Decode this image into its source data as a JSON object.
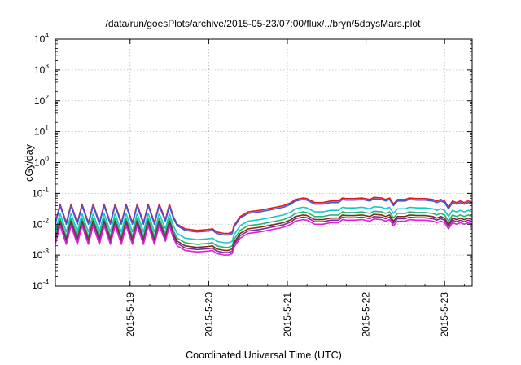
{
  "chart_data": {
    "type": "line",
    "title": "/data/run/goesPlots/archive/2015-05-23/07:00/flux/../bryn/5daysMars.plot",
    "xlabel": "Coordinated Universal Time (UTC)",
    "ylabel": "cGy/day",
    "y_scale": "log",
    "ylim_exponents": [
      -4,
      4
    ],
    "y_ticks": [
      {
        "base": "10",
        "exp": "-4"
      },
      {
        "base": "10",
        "exp": "-3"
      },
      {
        "base": "10",
        "exp": "-2"
      },
      {
        "base": "10",
        "exp": "-1"
      },
      {
        "base": "10",
        "exp": "0"
      },
      {
        "base": "10",
        "exp": "1"
      },
      {
        "base": "10",
        "exp": "2"
      },
      {
        "base": "10",
        "exp": "3"
      },
      {
        "base": "10",
        "exp": "4"
      }
    ],
    "xlim_days": [
      0,
      5.3
    ],
    "x_ticks": [
      {
        "label": "2015-5-19",
        "day": 0.95
      },
      {
        "label": "2015-5-20",
        "day": 1.95
      },
      {
        "label": "2015-5-21",
        "day": 2.95
      },
      {
        "label": "2015-5-22",
        "day": 3.95
      },
      {
        "label": "2015-5-23",
        "day": 4.95
      }
    ],
    "grid": true,
    "series": [
      {
        "color": "#e8141e",
        "offset": 0.55
      },
      {
        "color": "#3b5bdb",
        "offset": 0.5
      },
      {
        "color": "#18c7c7",
        "offset": 0.25
      },
      {
        "color": "#22b573",
        "offset": 0.1
      },
      {
        "color": "#7a2e12",
        "offset": 0.0
      },
      {
        "color": "#7a2aa0",
        "offset": -0.07
      },
      {
        "color": "#e020d0",
        "offset": -0.15
      }
    ],
    "base_curve": [
      [
        0.0,
        -2.5
      ],
      [
        0.06,
        -1.9
      ],
      [
        0.14,
        -2.5
      ],
      [
        0.2,
        -1.9
      ],
      [
        0.28,
        -2.5
      ],
      [
        0.34,
        -1.9
      ],
      [
        0.42,
        -2.5
      ],
      [
        0.48,
        -1.9
      ],
      [
        0.56,
        -2.5
      ],
      [
        0.62,
        -1.9
      ],
      [
        0.7,
        -2.5
      ],
      [
        0.76,
        -1.9
      ],
      [
        0.84,
        -2.5
      ],
      [
        0.9,
        -1.9
      ],
      [
        0.98,
        -2.5
      ],
      [
        1.04,
        -1.9
      ],
      [
        1.12,
        -2.5
      ],
      [
        1.18,
        -1.9
      ],
      [
        1.26,
        -2.5
      ],
      [
        1.32,
        -1.9
      ],
      [
        1.4,
        -2.4
      ],
      [
        1.45,
        -1.9
      ],
      [
        1.5,
        -2.3
      ],
      [
        1.55,
        -2.55
      ],
      [
        1.65,
        -2.7
      ],
      [
        1.8,
        -2.75
      ],
      [
        1.95,
        -2.72
      ],
      [
        2.0,
        -2.7
      ],
      [
        2.05,
        -2.8
      ],
      [
        2.15,
        -2.85
      ],
      [
        2.2,
        -2.85
      ],
      [
        2.25,
        -2.8
      ],
      [
        2.27,
        -2.6
      ],
      [
        2.35,
        -2.3
      ],
      [
        2.45,
        -2.15
      ],
      [
        2.6,
        -2.1
      ],
      [
        2.8,
        -2.0
      ],
      [
        2.9,
        -1.95
      ],
      [
        3.0,
        -1.85
      ],
      [
        3.05,
        -1.75
      ],
      [
        3.15,
        -1.7
      ],
      [
        3.2,
        -1.72
      ],
      [
        3.3,
        -1.85
      ],
      [
        3.4,
        -1.85
      ],
      [
        3.5,
        -1.8
      ],
      [
        3.6,
        -1.8
      ],
      [
        3.65,
        -1.7
      ],
      [
        3.7,
        -1.72
      ],
      [
        3.8,
        -1.72
      ],
      [
        3.9,
        -1.7
      ],
      [
        4.0,
        -1.75
      ],
      [
        4.05,
        -1.68
      ],
      [
        4.15,
        -1.7
      ],
      [
        4.2,
        -1.75
      ],
      [
        4.25,
        -1.7
      ],
      [
        4.3,
        -1.9
      ],
      [
        4.35,
        -1.75
      ],
      [
        4.45,
        -1.75
      ],
      [
        4.5,
        -1.7
      ],
      [
        4.6,
        -1.72
      ],
      [
        4.7,
        -1.72
      ],
      [
        4.8,
        -1.75
      ],
      [
        4.85,
        -1.8
      ],
      [
        4.9,
        -1.75
      ],
      [
        4.95,
        -1.8
      ],
      [
        5.0,
        -2.0
      ],
      [
        5.05,
        -1.8
      ],
      [
        5.1,
        -1.85
      ],
      [
        5.15,
        -1.8
      ],
      [
        5.2,
        -1.85
      ],
      [
        5.25,
        -1.8
      ],
      [
        5.3,
        -1.85
      ]
    ]
  }
}
